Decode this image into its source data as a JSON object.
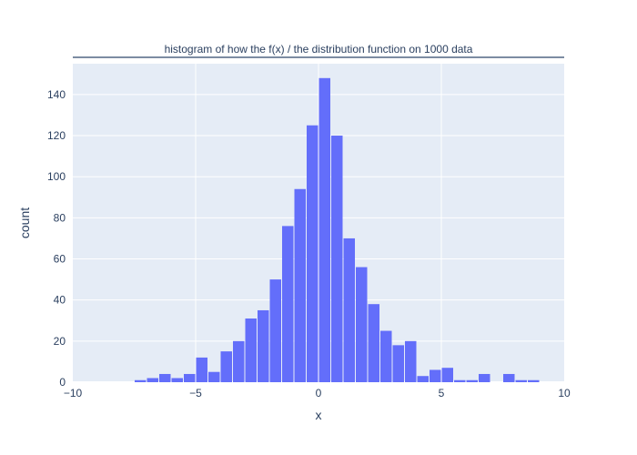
{
  "chart_data": {
    "type": "bar",
    "title": "histogram of how the f(x) / the distribution function on 1000 data",
    "xlabel": "x",
    "ylabel": "count",
    "xlim": [
      -10,
      10
    ],
    "ylim": [
      0,
      155
    ],
    "xticks": [
      -10,
      -5,
      0,
      5,
      10
    ],
    "xtick_labels": [
      "−10",
      "−5",
      "0",
      "5",
      "10"
    ],
    "yticks": [
      0,
      20,
      40,
      60,
      80,
      100,
      120,
      140
    ],
    "bin_width": 0.5,
    "bin_starts": [
      -7.5,
      -7,
      -6.5,
      -6,
      -5.5,
      -5,
      -4.5,
      -4,
      -3.5,
      -3,
      -2.5,
      -2,
      -1.5,
      -1,
      -0.5,
      0,
      0.5,
      1,
      1.5,
      2,
      2.5,
      3,
      3.5,
      4,
      4.5,
      5,
      5.5,
      6,
      6.5,
      7,
      7.5,
      8,
      8.5
    ],
    "values": [
      1,
      2,
      4,
      2,
      4,
      12,
      5,
      15,
      20,
      31,
      35,
      50,
      76,
      94,
      125,
      148,
      120,
      70,
      56,
      38,
      25,
      18,
      20,
      3,
      6,
      7,
      1,
      1,
      4,
      0,
      4,
      1,
      1
    ],
    "grid": true,
    "colors": {
      "bar": "#636efa",
      "plot_bg": "#e5ecf6",
      "grid": "#ffffff",
      "text": "#2a3f5f",
      "title_rule": "#506784"
    }
  }
}
